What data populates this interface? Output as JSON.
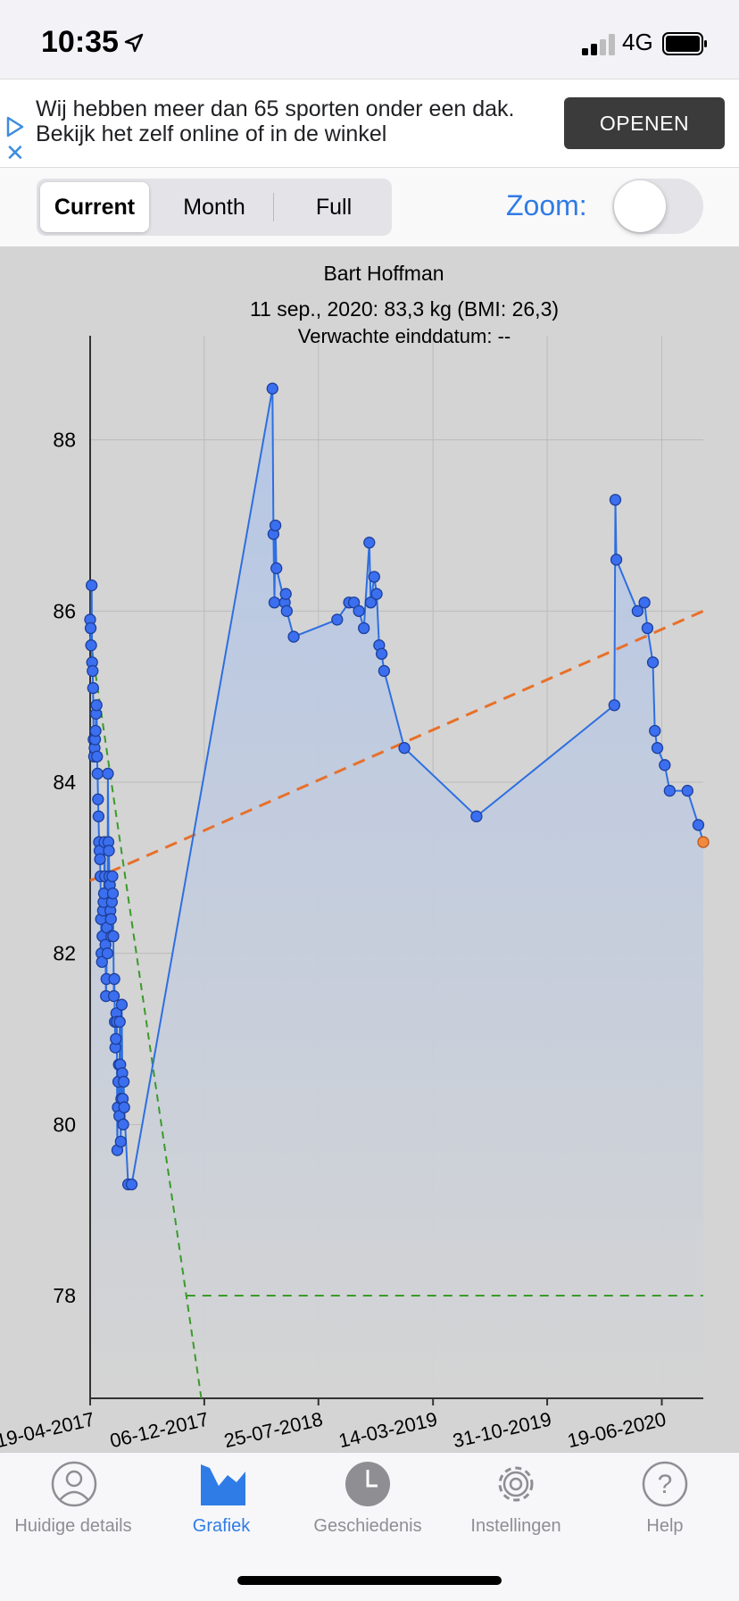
{
  "status": {
    "time": "10:35",
    "network": "4G"
  },
  "ad": {
    "text": "Wij hebben meer dan 65 sporten onder een dak. Bekijk het zelf online of in de winkel",
    "button": "OPENEN"
  },
  "segments": [
    "Current",
    "Month",
    "Full"
  ],
  "zoom_label": "Zoom:",
  "colors": {
    "accent": "#2f7ce6",
    "line": "#2e6fe0",
    "trend": "#e8702a",
    "goal": "#3a9a2a"
  },
  "chart_data": {
    "type": "line",
    "title": "Bart Hoffman",
    "subtitle": "11 sep., 2020: 83,3 kg (BMI: 26,3)",
    "subtitle2": "Verwachte einddatum: --",
    "ylim": [
      76.8,
      88.8
    ],
    "yticks": [
      78,
      80,
      82,
      84,
      86,
      88
    ],
    "xrange": [
      "2017-04-19",
      "2020-09-11"
    ],
    "xticks": [
      "19-04-2017",
      "06-12-2017",
      "25-07-2018",
      "14-03-2019",
      "31-10-2019",
      "19-06-2020"
    ],
    "series": [
      {
        "x": [
          "2017-04-19",
          "2017-04-20",
          "2017-04-21",
          "2017-04-22",
          "2017-04-23",
          "2017-04-24",
          "2017-04-25",
          "2017-04-26",
          "2017-04-27",
          "2017-04-28",
          "2017-04-29",
          "2017-04-30",
          "2017-05-01",
          "2017-05-02",
          "2017-05-03",
          "2017-05-04",
          "2017-05-05",
          "2017-05-06",
          "2017-05-07",
          "2017-05-08",
          "2017-05-09",
          "2017-05-10",
          "2017-05-11",
          "2017-05-12",
          "2017-05-13",
          "2017-05-14",
          "2017-05-15",
          "2017-05-16",
          "2017-05-17",
          "2017-05-18",
          "2017-05-19",
          "2017-05-20",
          "2017-05-21",
          "2017-05-22",
          "2017-05-23",
          "2017-05-24",
          "2017-05-25",
          "2017-05-26",
          "2017-05-27",
          "2017-05-28",
          "2017-05-29",
          "2017-05-30",
          "2017-05-31",
          "2017-06-01",
          "2017-06-02",
          "2017-06-03",
          "2017-06-04",
          "2017-06-05",
          "2017-06-06",
          "2017-06-07",
          "2017-06-08",
          "2017-06-09",
          "2017-06-10",
          "2017-06-11",
          "2017-06-12",
          "2017-06-13",
          "2017-06-14",
          "2017-06-15",
          "2017-06-16",
          "2017-06-17",
          "2017-06-18",
          "2017-06-19",
          "2017-06-20",
          "2017-06-21",
          "2017-06-22",
          "2017-06-23",
          "2017-06-24",
          "2017-06-25",
          "2017-06-26",
          "2017-06-27",
          "2017-07-05",
          "2017-07-12",
          "2018-04-23",
          "2018-04-25",
          "2018-04-27",
          "2018-04-29",
          "2018-05-01",
          "2018-05-18",
          "2018-05-20",
          "2018-05-22",
          "2018-06-05",
          "2018-09-01",
          "2018-09-25",
          "2018-10-05",
          "2018-10-15",
          "2018-10-25",
          "2018-11-05",
          "2018-11-08",
          "2018-11-15",
          "2018-11-20",
          "2018-11-25",
          "2018-11-30",
          "2018-12-05",
          "2019-01-15",
          "2019-06-10",
          "2020-03-15",
          "2020-03-17",
          "2020-03-19",
          "2020-05-01",
          "2020-05-15",
          "2020-05-21",
          "2020-06-01",
          "2020-06-05",
          "2020-06-10",
          "2020-06-25",
          "2020-07-05",
          "2020-08-10",
          "2020-09-01",
          "2020-09-11"
        ],
        "values": [
          85.9,
          85.8,
          85.6,
          86.3,
          85.4,
          85.3,
          85.1,
          84.5,
          84.3,
          84.4,
          84.5,
          84.6,
          84.8,
          84.9,
          84.3,
          84.1,
          83.8,
          83.6,
          83.3,
          83.2,
          83.1,
          82.9,
          82.4,
          82.0,
          81.9,
          82.2,
          82.5,
          82.6,
          82.7,
          83.3,
          82.9,
          82.1,
          81.5,
          81.7,
          82.3,
          82.0,
          84.1,
          83.3,
          83.2,
          82.9,
          82.8,
          82.5,
          82.4,
          82.2,
          82.6,
          82.9,
          82.7,
          82.2,
          81.5,
          81.7,
          81.2,
          80.9,
          81.0,
          81.3,
          81.2,
          79.7,
          80.2,
          80.5,
          80.7,
          80.1,
          81.2,
          80.7,
          79.8,
          80.3,
          81.4,
          80.6,
          80.3,
          80.0,
          80.5,
          80.2,
          79.3,
          79.3,
          88.6,
          86.9,
          86.1,
          87.0,
          86.5,
          86.1,
          86.2,
          86.0,
          85.7,
          85.9,
          86.1,
          86.1,
          86.0,
          85.8,
          86.8,
          86.1,
          86.4,
          86.2,
          85.6,
          85.5,
          85.3,
          84.4,
          83.6,
          84.9,
          87.3,
          86.6,
          86.0,
          86.1,
          85.8,
          85.4,
          84.6,
          84.4,
          84.2,
          83.9,
          83.9,
          83.5,
          83.3
        ]
      }
    ],
    "trend": {
      "x": [
        "2017-04-19",
        "2020-09-11"
      ],
      "values": [
        82.85,
        86.0
      ]
    },
    "goal_line": {
      "value": 78,
      "decline_x": [
        "2017-04-19",
        "2017-11-30"
      ],
      "decline_values": [
        85.7,
        76.8
      ]
    }
  },
  "tabs": [
    {
      "label": "Huidige details",
      "icon": "person-icon",
      "active": false
    },
    {
      "label": "Grafiek",
      "icon": "chart-icon",
      "active": true
    },
    {
      "label": "Geschiedenis",
      "icon": "clock-icon",
      "active": false
    },
    {
      "label": "Instellingen",
      "icon": "gear-icon",
      "active": false
    },
    {
      "label": "Help",
      "icon": "help-icon",
      "active": false
    }
  ]
}
